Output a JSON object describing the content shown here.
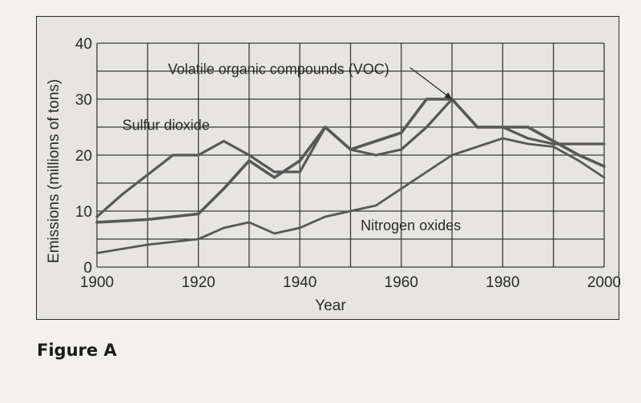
{
  "figure": {
    "caption": "Figure A"
  },
  "chart_data": {
    "type": "line",
    "xlabel": "Year",
    "ylabel": "Emissions (millions of tons)",
    "xlim": [
      1900,
      2000
    ],
    "ylim": [
      0,
      40
    ],
    "xticks": [
      1900,
      1920,
      1940,
      1960,
      1980,
      2000
    ],
    "yticks": [
      0,
      10,
      20,
      30,
      40
    ],
    "grid": true,
    "colors": {
      "line": "#585858",
      "grid": "#3a3a3a",
      "background": "#e6e5e2"
    },
    "series": [
      {
        "name": "Sulfur dioxide",
        "x": [
          1900,
          1905,
          1915,
          1920,
          1925,
          1930,
          1935,
          1940,
          1945,
          1950,
          1955,
          1960,
          1965,
          1970,
          1975,
          1980,
          1985,
          1990,
          1995,
          2000
        ],
        "values": [
          9,
          13,
          20,
          20,
          22.5,
          20,
          17,
          17,
          25,
          21,
          20,
          21,
          25,
          30,
          25,
          25,
          23,
          22,
          22,
          22
        ]
      },
      {
        "name": "Volatile organic compounds (VOC)",
        "x": [
          1900,
          1910,
          1920,
          1925,
          1930,
          1935,
          1940,
          1945,
          1950,
          1955,
          1960,
          1965,
          1970,
          1975,
          1980,
          1985,
          1990,
          1995,
          2000
        ],
        "values": [
          8,
          8.5,
          9.5,
          14,
          19,
          16,
          19,
          25,
          21,
          22.5,
          24,
          30,
          30,
          25,
          25,
          25,
          22.5,
          20,
          18
        ]
      },
      {
        "name": "Nitrogen oxides",
        "x": [
          1900,
          1910,
          1920,
          1925,
          1930,
          1935,
          1940,
          1945,
          1950,
          1955,
          1960,
          1965,
          1970,
          1975,
          1980,
          1985,
          1990,
          1995,
          2000
        ],
        "values": [
          2.5,
          4,
          5,
          7,
          8,
          6,
          7,
          9,
          10,
          11,
          14,
          17,
          20,
          21.5,
          23,
          22,
          21.5,
          19,
          16
        ]
      }
    ],
    "annotations": [
      {
        "text": "Volatile organic compounds (VOC)",
        "x": 1963,
        "y": 36.5,
        "arrow_to_x": 1970,
        "arrow_to_y": 30
      }
    ]
  }
}
